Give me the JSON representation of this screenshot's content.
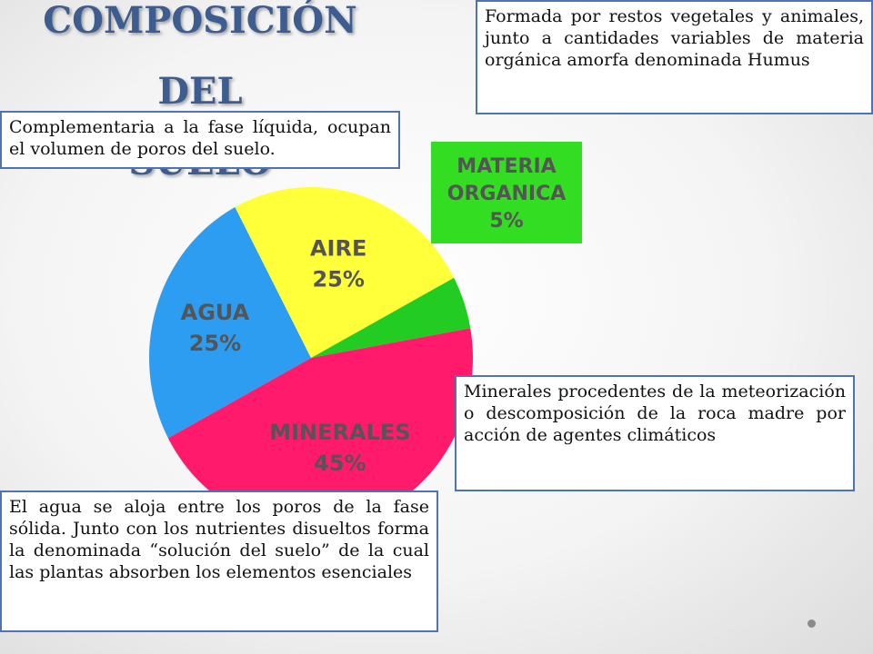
{
  "title": {
    "line1": "COMPOSICIÓN DEL",
    "line2": "SUELO"
  },
  "notes": {
    "humus": "Formada por restos vegetales y animales, junto a cantidades variables de materia orgánica amorfa denominada Humus",
    "aire": "Complementaria a la fase líquida, ocupan el volumen de poros del suelo.",
    "minerales": "Minerales procedentes de la meteorización o descomposición de la roca madre por acción de agentes climáticos",
    "agua": "El agua se aloja entre los poros de la fase sólida. Junto con los nutrientes disueltos forma la denominada “solución del suelo” de la cual las plantas absorben los elementos esenciales"
  },
  "chart_data": {
    "type": "pie",
    "title": "COMPOSICIÓN DEL SUELO",
    "slices": [
      {
        "label": "MATERIA ORGANICA",
        "value": 5,
        "value_label": "5%",
        "color": "#22cc22"
      },
      {
        "label": "MINERALES",
        "value": 45,
        "value_label": "45%",
        "color": "#ff1a6b"
      },
      {
        "label": "AGUA",
        "value": 25,
        "value_label": "25%",
        "color": "#2c9df0"
      },
      {
        "label": "AIRE",
        "value": 25,
        "value_label": "25%",
        "color": "#ffff3a"
      }
    ],
    "label_color": "#555555",
    "callout_box_color": "#33dd22"
  }
}
